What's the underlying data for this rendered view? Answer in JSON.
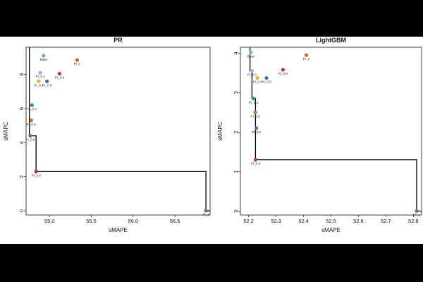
{
  "chart_data": [
    {
      "type": "scatter",
      "title": "PR",
      "xlabel": "sMAPE",
      "ylabel": "sMAPC",
      "xlim": [
        54.72,
        56.92
      ],
      "ylim": [
        -0.25,
        9.6
      ],
      "xticks": [
        "55.0",
        "55.5",
        "56.0",
        "56.5"
      ],
      "xtick_values": [
        55.0,
        55.5,
        56.0,
        56.5
      ],
      "yticks": [
        "0",
        "2",
        "4",
        "6",
        "8"
      ],
      "ytick_values": [
        0,
        2,
        4,
        6,
        8
      ],
      "points": [
        {
          "label": "Base",
          "x": 54.93,
          "y": 9.1,
          "color": "#66c07a"
        },
        {
          "label": "PI_1",
          "x": 55.33,
          "y": 8.85,
          "color": "#c96b22"
        },
        {
          "label": "PI_0.8",
          "x": 55.12,
          "y": 8.05,
          "color": "#e0197a"
        },
        {
          "label": "PI_0.2",
          "x": 54.89,
          "y": 8.1,
          "color": "#b3a3d6"
        },
        {
          "label": "PI_0.4",
          "x": 54.87,
          "y": 7.6,
          "color": "#e3b81f"
        },
        {
          "label": "PI_0.6",
          "x": 54.97,
          "y": 7.6,
          "color": "#3a6fb0"
        },
        {
          "label": "PI_0.4",
          "x": 54.79,
          "y": 6.2,
          "color": "#1d9e78"
        },
        {
          "label": "PI_0.5",
          "x": 54.78,
          "y": 5.3,
          "color": "#c96b22"
        },
        {
          "label": "PI_0.6",
          "x": 54.77,
          "y": 4.4,
          "color": "#7a5fb0"
        },
        {
          "label": "PI_0.8",
          "x": 54.84,
          "y": 2.3,
          "color": "#e0197a"
        },
        {
          "label": "PI_1",
          "x": 56.87,
          "y": 0.0,
          "color": "#2e9e3e"
        }
      ],
      "frontier": [
        [
          54.76,
          9.6
        ],
        [
          54.76,
          4.4
        ],
        [
          54.84,
          4.4
        ],
        [
          54.84,
          2.3
        ],
        [
          56.87,
          2.3
        ],
        [
          56.87,
          0.0
        ],
        [
          56.92,
          0.0
        ]
      ]
    },
    {
      "type": "scatter",
      "title": "LightGBM",
      "xlabel": "sMAPE",
      "ylabel": "sMAPC",
      "xlim": [
        52.17,
        52.83
      ],
      "ylim": [
        -0.1,
        4.15
      ],
      "xticks": [
        "52.2",
        "52.3",
        "52.4",
        "52.5",
        "52.6",
        "52.7",
        "52.8"
      ],
      "xtick_values": [
        52.2,
        52.3,
        52.4,
        52.5,
        52.6,
        52.7,
        52.8
      ],
      "yticks": [
        "0",
        "1",
        "2",
        "3",
        "4"
      ],
      "ytick_values": [
        0,
        1,
        2,
        3,
        4
      ],
      "points": [
        {
          "label": "Base",
          "x": 52.208,
          "y": 4.02,
          "color": "#66c07a"
        },
        {
          "label": "PI_1",
          "x": 52.41,
          "y": 3.95,
          "color": "#c96b22"
        },
        {
          "label": "PI_0.8",
          "x": 52.325,
          "y": 3.58,
          "color": "#e0197a"
        },
        {
          "label": "PI_0.2",
          "x": 52.212,
          "y": 3.55,
          "color": "#b3a3d6"
        },
        {
          "label": "PI_0.4",
          "x": 52.232,
          "y": 3.37,
          "color": "#e3b81f"
        },
        {
          "label": "PI_0.6",
          "x": 52.265,
          "y": 3.37,
          "color": "#3a6fb0"
        },
        {
          "label": "PI_0.4",
          "x": 52.218,
          "y": 2.85,
          "color": "#1d9e78"
        },
        {
          "label": "PI_0.5",
          "x": 52.224,
          "y": 2.5,
          "color": "#c96b22"
        },
        {
          "label": "PI_0.6",
          "x": 52.228,
          "y": 2.1,
          "color": "#7a5fb0"
        },
        {
          "label": "PI_0.8",
          "x": 52.225,
          "y": 1.3,
          "color": "#e0197a"
        },
        {
          "label": "PI_1",
          "x": 52.812,
          "y": 0.0,
          "color": "#2e9e3e"
        }
      ],
      "frontier": [
        [
          52.205,
          4.15
        ],
        [
          52.205,
          3.55
        ],
        [
          52.212,
          3.55
        ],
        [
          52.212,
          2.85
        ],
        [
          52.225,
          2.85
        ],
        [
          52.225,
          1.3
        ],
        [
          52.812,
          1.3
        ],
        [
          52.812,
          0.0
        ],
        [
          52.83,
          0.0
        ]
      ]
    }
  ]
}
